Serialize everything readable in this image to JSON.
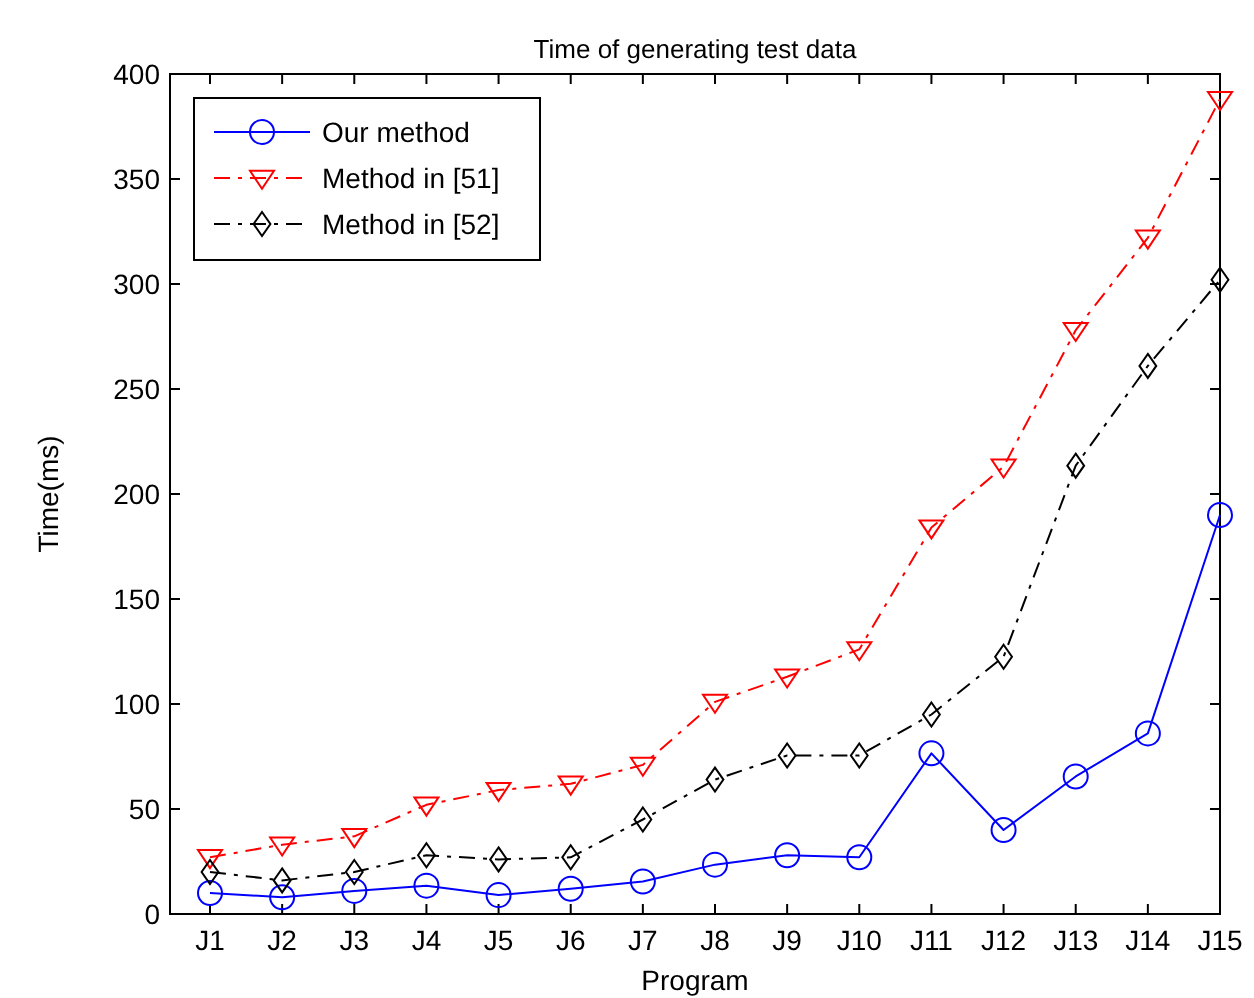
{
  "chart_data": {
    "type": "line",
    "title": "Time of generating test data",
    "xlabel": "Program",
    "ylabel": "Time(ms)",
    "categories": [
      "J1",
      "J2",
      "J3",
      "J4",
      "J5",
      "J6",
      "J7",
      "J8",
      "J9",
      "J10",
      "J11",
      "J12",
      "J13",
      "J14",
      "J15"
    ],
    "ylim": [
      0,
      400
    ],
    "yticks": [
      0,
      50,
      100,
      150,
      200,
      250,
      300,
      350,
      400
    ],
    "grid": false,
    "legend": "top left",
    "series": [
      {
        "name": "Our method",
        "color": "#0000ff",
        "marker": "circle",
        "line_style": "solid",
        "values": [
          10,
          8,
          11,
          13.5,
          9,
          12,
          15.5,
          23.5,
          28,
          27,
          76.5,
          40,
          65.5,
          86,
          190
        ]
      },
      {
        "name": "Method in [51]",
        "color": "#ff0000",
        "marker": "triangle",
        "line_style": "dashdot",
        "values": [
          27,
          33,
          37,
          52,
          59,
          62,
          71,
          101,
          113,
          126,
          184,
          213,
          278,
          322,
          388
        ]
      },
      {
        "name": "Method in [52]",
        "color": "#000000",
        "marker": "diamond",
        "line_style": "dashdot",
        "values": [
          20,
          16,
          20,
          28,
          26,
          27,
          45,
          64,
          75.5,
          75.5,
          95,
          122.5,
          213.5,
          261,
          302
        ]
      }
    ]
  }
}
